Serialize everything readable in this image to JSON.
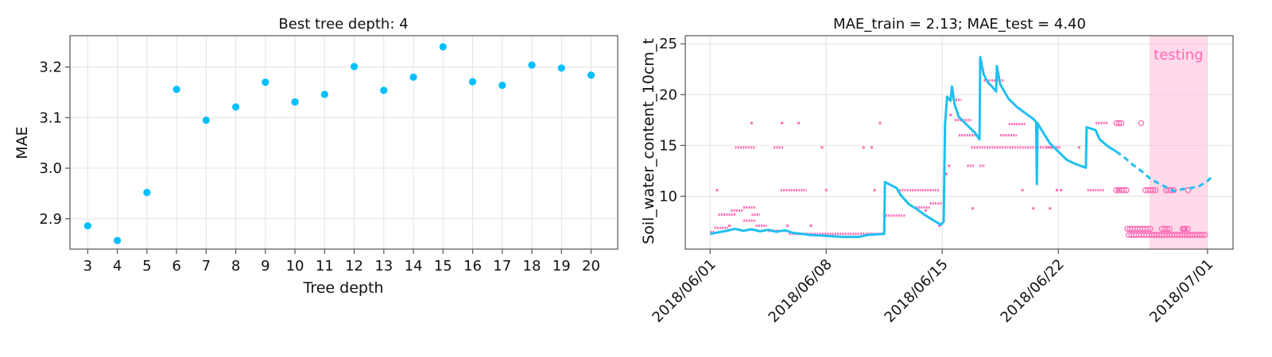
{
  "chart_data": [
    {
      "type": "scatter",
      "title": "Best tree depth: 4",
      "xlabel": "Tree depth",
      "ylabel": "MAE",
      "xlim": [
        2.4,
        20.9
      ],
      "ylim": [
        2.84,
        3.262
      ],
      "xticks": [
        3,
        4,
        5,
        6,
        7,
        8,
        9,
        10,
        11,
        12,
        13,
        14,
        15,
        16,
        17,
        18,
        19,
        20
      ],
      "yticks": [
        2.9,
        3.0,
        3.1,
        3.2
      ],
      "grid": true,
      "series": [
        {
          "color": "#00bfff",
          "points": [
            [
              3,
              2.886
            ],
            [
              4,
              2.857
            ],
            [
              5,
              2.952
            ],
            [
              6,
              3.156
            ],
            [
              7,
              3.095
            ],
            [
              8,
              3.121
            ],
            [
              9,
              3.17
            ],
            [
              10,
              3.131
            ],
            [
              11,
              3.146
            ],
            [
              12,
              3.201
            ],
            [
              13,
              3.154
            ],
            [
              14,
              3.18
            ],
            [
              15,
              3.24
            ],
            [
              16,
              3.171
            ],
            [
              17,
              3.164
            ],
            [
              18,
              3.204
            ],
            [
              19,
              3.198
            ],
            [
              20,
              3.184
            ]
          ]
        }
      ]
    },
    {
      "type": "line",
      "title": "MAE_train = 2.13; MAE_test = 4.40",
      "xlabel": "",
      "ylabel": "Soil_water_content_10cm_t",
      "x_is_date": true,
      "xlim": [
        "2018-05-30T12:00",
        "2018-07-02T13:00"
      ],
      "ylim": [
        4.8,
        25.8
      ],
      "xticks": [
        "2018/06/01",
        "2018/06/08",
        "2018/06/15",
        "2018/06/22",
        "2018/07/01"
      ],
      "yticks": [
        10,
        15,
        20,
        25
      ],
      "grid": true,
      "annotation": {
        "label": "testing",
        "start": "2018-06-27T12:00",
        "end": "2018-07-01T00:00",
        "color": "#ff69b4"
      },
      "series": [
        {
          "role": "observed_train",
          "color": "#1ec0f0",
          "style": "solid",
          "points": [
            [
              "2018-06-01T00:00",
              6.3
            ],
            [
              "2018-06-02T00:00",
              6.6
            ],
            [
              "2018-06-02T12:00",
              6.8
            ],
            [
              "2018-06-03T00:00",
              6.6
            ],
            [
              "2018-06-03T12:00",
              6.75
            ],
            [
              "2018-06-04T00:00",
              6.55
            ],
            [
              "2018-06-04T12:00",
              6.7
            ],
            [
              "2018-06-05T00:00",
              6.5
            ],
            [
              "2018-06-05T12:00",
              6.65
            ],
            [
              "2018-06-06T00:00",
              6.4
            ],
            [
              "2018-06-07T00:00",
              6.2
            ],
            [
              "2018-06-08T00:00",
              6.1
            ],
            [
              "2018-06-09T00:00",
              6.0
            ],
            [
              "2018-06-10T00:00",
              6.0
            ],
            [
              "2018-06-10T12:00",
              6.2
            ],
            [
              "2018-06-11T12:00",
              6.3
            ],
            [
              "2018-06-11T13:00",
              11.4
            ],
            [
              "2018-06-12T06:00",
              10.8
            ],
            [
              "2018-06-12T12:00",
              10.1
            ],
            [
              "2018-06-13T00:00",
              9.2
            ],
            [
              "2018-06-13T12:00",
              8.7
            ],
            [
              "2018-06-14T00:00",
              8.1
            ],
            [
              "2018-06-14T12:00",
              7.6
            ],
            [
              "2018-06-14T22:00",
              7.2
            ],
            [
              "2018-06-15T02:00",
              7.5
            ],
            [
              "2018-06-15T04:00",
              17.0
            ],
            [
              "2018-06-15T07:00",
              19.8
            ],
            [
              "2018-06-15T12:00",
              19.4
            ],
            [
              "2018-06-15T14:00",
              20.8
            ],
            [
              "2018-06-15T18:00",
              19.0
            ],
            [
              "2018-06-16T00:00",
              17.8
            ],
            [
              "2018-06-16T12:00",
              17.0
            ],
            [
              "2018-06-17T00:00",
              16.2
            ],
            [
              "2018-06-17T06:00",
              15.6
            ],
            [
              "2018-06-17T07:00",
              23.7
            ],
            [
              "2018-06-17T12:00",
              22.0
            ],
            [
              "2018-06-17T18:00",
              21.2
            ],
            [
              "2018-06-18T00:00",
              20.8
            ],
            [
              "2018-06-18T06:00",
              20.3
            ],
            [
              "2018-06-18T07:00",
              22.8
            ],
            [
              "2018-06-18T12:00",
              21.0
            ],
            [
              "2018-06-19T00:00",
              19.6
            ],
            [
              "2018-06-19T12:00",
              18.8
            ],
            [
              "2018-06-20T00:00",
              18.2
            ],
            [
              "2018-06-20T12:00",
              17.6
            ],
            [
              "2018-06-20T16:00",
              17.3
            ],
            [
              "2018-06-20T17:00",
              11.2
            ],
            [
              "2018-06-20T18:00",
              17.2
            ],
            [
              "2018-06-21T00:00",
              16.5
            ],
            [
              "2018-06-21T12:00",
              15.2
            ],
            [
              "2018-06-22T00:00",
              14.4
            ],
            [
              "2018-06-22T12:00",
              13.6
            ],
            [
              "2018-06-23T00:00",
              13.2
            ],
            [
              "2018-06-23T12:00",
              12.9
            ],
            [
              "2018-06-23T16:00",
              12.8
            ],
            [
              "2018-06-23T17:00",
              16.8
            ],
            [
              "2018-06-24T06:00",
              16.5
            ],
            [
              "2018-06-24T12:00",
              15.6
            ],
            [
              "2018-06-25T00:00",
              14.9
            ],
            [
              "2018-06-25T12:00",
              14.4
            ]
          ]
        },
        {
          "role": "observed_test",
          "color": "#1ec0f0",
          "style": "dashed",
          "points": [
            [
              "2018-06-25T12:00",
              14.4
            ],
            [
              "2018-06-26T00:00",
              13.8
            ],
            [
              "2018-06-26T12:00",
              13.1
            ],
            [
              "2018-06-27T00:00",
              12.5
            ],
            [
              "2018-06-27T12:00",
              11.8
            ],
            [
              "2018-06-28T00:00",
              11.3
            ],
            [
              "2018-06-28T12:00",
              10.9
            ],
            [
              "2018-06-29T00:00",
              10.5
            ],
            [
              "2018-06-29T12:00",
              10.7
            ],
            [
              "2018-06-30T00:00",
              10.8
            ],
            [
              "2018-06-30T12:00",
              11.0
            ],
            [
              "2018-07-01T00:00",
              11.5
            ],
            [
              "2018-07-01T06:00",
              11.9
            ]
          ]
        },
        {
          "role": "predicted_train",
          "color": "#ff69b4",
          "style": "markers",
          "segments": [
            [
              "2018-06-01T00:00",
              "2018-06-01T06:00",
              6.5
            ],
            [
              "2018-06-01T06:00",
              "2018-06-02T02:00",
              6.9
            ],
            [
              "2018-06-01T12:00",
              "2018-06-02T14:00",
              8.2
            ],
            [
              "2018-06-02T06:00",
              "2018-06-03T00:00",
              8.6
            ],
            [
              "2018-06-03T00:00",
              "2018-06-03T18:00",
              8.9
            ],
            [
              "2018-06-03T12:00",
              "2018-06-04T00:00",
              8.2
            ],
            [
              "2018-06-03T00:00",
              "2018-06-03T18:00",
              7.6
            ],
            [
              "2018-06-03T18:00",
              "2018-06-04T10:00",
              7.1
            ],
            [
              "2018-06-02T12:00",
              "2018-06-03T18:00",
              14.8
            ],
            [
              "2018-06-04T20:00",
              "2018-06-05T10:00",
              14.8
            ],
            [
              "2018-06-05T06:00",
              "2018-06-06T20:00",
              10.6
            ],
            [
              "2018-06-04T12:00",
              "2018-06-05T18:00",
              6.6
            ],
            [
              "2018-06-05T18:00",
              "2018-06-11T14:00",
              6.3
            ],
            [
              "2018-06-11T14:00",
              "2018-06-12T18:00",
              8.1
            ],
            [
              "2018-06-12T06:00",
              "2018-06-14T20:00",
              10.6
            ],
            [
              "2018-06-13T06:00",
              "2018-06-14T06:00",
              8.9
            ],
            [
              "2018-06-14T06:00",
              "2018-06-15T00:00",
              9.3
            ],
            [
              "2018-06-15T12:00",
              "2018-06-16T04:00",
              19.5
            ],
            [
              "2018-06-15T18:00",
              "2018-06-16T18:00",
              17.5
            ],
            [
              "2018-06-16T00:00",
              "2018-06-17T00:00",
              16.0
            ],
            [
              "2018-06-16T18:00",
              "2018-06-21T20:00",
              14.8
            ],
            [
              "2018-06-17T12:00",
              "2018-06-18T18:00",
              21.4
            ],
            [
              "2018-06-18T12:00",
              "2018-06-19T12:00",
              16.0
            ],
            [
              "2018-06-19T00:00",
              "2018-06-20T00:00",
              17.1
            ],
            [
              "2018-06-16T12:00",
              "2018-06-16T22:00",
              13.0
            ],
            [
              "2018-06-17T06:00",
              "2018-06-17T14:00",
              13.0
            ],
            [
              "2018-06-23T18:00",
              "2018-06-24T18:00",
              10.6
            ],
            [
              "2018-06-24T06:00",
              "2018-06-25T00:00",
              17.2
            ],
            [
              "2018-06-21T06:00",
              "2018-06-22T04:00",
              14.8
            ],
            [
              "2018-06-25T12:00",
              "2018-06-25T20:00",
              10.6
            ]
          ],
          "points": [
            [
              "2018-06-01T10:00",
              10.6
            ],
            [
              "2018-06-02T04:00",
              7.1
            ],
            [
              "2018-06-03T12:00",
              17.2
            ],
            [
              "2018-06-05T08:00",
              17.2
            ],
            [
              "2018-06-06T08:00",
              17.2
            ],
            [
              "2018-06-05T16:00",
              7.1
            ],
            [
              "2018-06-07T02:00",
              7.1
            ],
            [
              "2018-06-07T18:00",
              14.8
            ],
            [
              "2018-06-08T00:00",
              10.6
            ],
            [
              "2018-06-10T06:00",
              14.8
            ],
            [
              "2018-06-10T18:00",
              14.8
            ],
            [
              "2018-06-10T22:00",
              10.6
            ],
            [
              "2018-06-11T06:00",
              17.2
            ],
            [
              "2018-06-15T06:00",
              12.2
            ],
            [
              "2018-06-15T10:00",
              13.0
            ],
            [
              "2018-06-15T12:00",
              18.0
            ],
            [
              "2018-06-14T00:00",
              8.6
            ],
            [
              "2018-06-14T20:00",
              7.1
            ],
            [
              "2018-06-16T20:00",
              8.8
            ],
            [
              "2018-06-19T20:00",
              10.6
            ],
            [
              "2018-06-20T12:00",
              8.8
            ],
            [
              "2018-06-21T12:00",
              8.8
            ],
            [
              "2018-06-21T22:00",
              10.6
            ],
            [
              "2018-06-22T04:00",
              10.6
            ],
            [
              "2018-06-23T06:00",
              14.8
            ]
          ]
        },
        {
          "role": "predicted_test",
          "color": "#ff69b4",
          "style": "open-circles",
          "segments": [
            [
              "2018-06-25T12:00",
              "2018-06-25T22:00",
              17.2
            ],
            [
              "2018-06-25T12:00",
              "2018-06-26T06:00",
              10.6
            ],
            [
              "2018-06-26T06:00",
              "2018-07-01T00:00",
              6.2
            ],
            [
              "2018-06-26T04:00",
              "2018-06-27T14:00",
              6.8
            ],
            [
              "2018-06-27T06:00",
              "2018-06-28T00:00",
              10.6
            ],
            [
              "2018-06-28T06:00",
              "2018-06-28T20:00",
              6.8
            ],
            [
              "2018-06-28T12:00",
              "2018-06-29T00:00",
              10.6
            ],
            [
              "2018-06-29T12:00",
              "2018-06-29T22:00",
              6.8
            ]
          ],
          "points": [
            [
              "2018-06-27T00:00",
              17.2
            ],
            [
              "2018-06-29T20:00",
              10.6
            ],
            [
              "2018-06-29T14:00",
              6.8
            ]
          ]
        }
      ]
    }
  ]
}
